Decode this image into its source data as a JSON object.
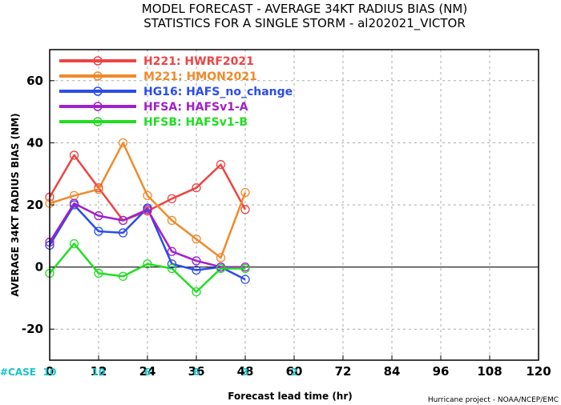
{
  "title_line1": "MODEL FORECAST - AVERAGE 34KT RADIUS BIAS (NM)",
  "title_line2": "STATISTICS FOR A SINGLE STORM - al202021_VICTOR",
  "credit": "Hurricane project - NOAA/NCEP/EMC",
  "case_label": "#CASE",
  "case_color": "#17c3c9",
  "case_counts": [
    {
      "x": 0,
      "label": "10"
    },
    {
      "x": 12,
      "label": "10"
    },
    {
      "x": 24,
      "label": "6"
    },
    {
      "x": 36,
      "label": "6"
    },
    {
      "x": 48,
      "label": "3"
    },
    {
      "x": 60,
      "label": "2"
    }
  ],
  "chart_data": {
    "type": "line",
    "xlabel": "Forecast lead time (hr)",
    "ylabel": "AVERAGE 34KT RADIUS BIAS (NM)",
    "xlim": [
      0,
      120
    ],
    "ylim": [
      -30,
      70
    ],
    "xticks": [
      0,
      12,
      24,
      36,
      48,
      60,
      72,
      84,
      96,
      108,
      120
    ],
    "yticks": [
      -20,
      0,
      20,
      40,
      60
    ],
    "grid": true,
    "zero_line": true,
    "legend_position": "top-left",
    "series": [
      {
        "name": "H221: HWRF2021",
        "color": "#ee4444",
        "x": [
          0,
          6,
          12,
          18,
          24,
          30,
          36,
          42,
          48
        ],
        "y": [
          22.5,
          36,
          25.5,
          15,
          18,
          22,
          25.5,
          33,
          18.5
        ]
      },
      {
        "name": "M221: HMON2021",
        "color": "#f08a2a",
        "x": [
          0,
          6,
          12,
          18,
          24,
          30,
          36,
          42,
          48
        ],
        "y": [
          20.5,
          23,
          25,
          40,
          23,
          15,
          9,
          3,
          24
        ]
      },
      {
        "name": "HG16: HAFS_no_change",
        "color": "#2b4de8",
        "x": [
          0,
          6,
          12,
          18,
          24,
          30,
          36,
          42,
          48
        ],
        "y": [
          7,
          20,
          11.5,
          11,
          19,
          1,
          -1,
          0,
          -4
        ]
      },
      {
        "name": "HFSA: HAFSv1-A",
        "color": "#a020c8",
        "x": [
          0,
          6,
          12,
          18,
          24,
          30,
          36,
          42,
          48
        ],
        "y": [
          8,
          20.5,
          16.5,
          15,
          18.5,
          5,
          2,
          0,
          0
        ]
      },
      {
        "name": "HFSB: HAFSv1-B",
        "color": "#22dd22",
        "x": [
          0,
          6,
          12,
          18,
          24,
          30,
          36,
          42,
          48
        ],
        "y": [
          -2,
          7.5,
          -2,
          -3,
          1,
          -0.5,
          -8,
          -0.5,
          -0.5
        ]
      }
    ]
  }
}
